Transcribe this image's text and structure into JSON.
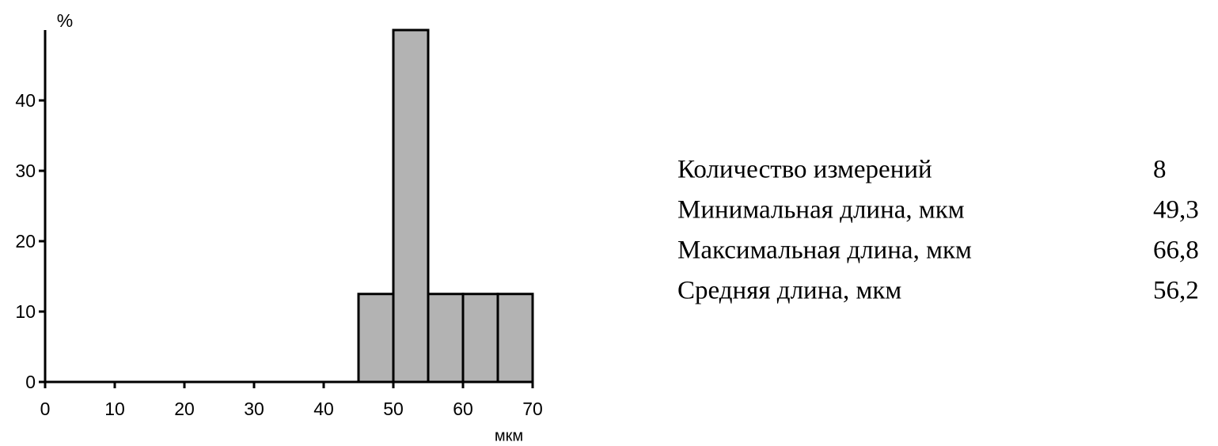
{
  "chart_data": {
    "type": "histogram",
    "y_label": "%",
    "x_label": "мкм",
    "bins": [
      0,
      5,
      10,
      15,
      20,
      25,
      30,
      35,
      40,
      45,
      50,
      55,
      60,
      65,
      70
    ],
    "values": [
      0,
      0,
      0,
      0,
      0,
      0,
      0,
      0,
      0,
      12.5,
      50,
      12.5,
      12.5,
      12.5
    ],
    "color": "#b3b3b3",
    "xlim": [
      0,
      70
    ],
    "xticks": [
      0,
      10,
      20,
      30,
      40,
      50,
      60,
      70
    ],
    "ylim": [
      0,
      50
    ],
    "yticks": [
      0,
      10,
      20,
      30,
      40
    ]
  },
  "stats": {
    "rows": [
      [
        "Количество измерений",
        "8"
      ],
      [
        "Минимальная длина, мкм",
        "49,3"
      ],
      [
        "Максимальная длина, мкм",
        "66,8"
      ],
      [
        "Средняя длина, мкм",
        "56,2"
      ]
    ]
  }
}
